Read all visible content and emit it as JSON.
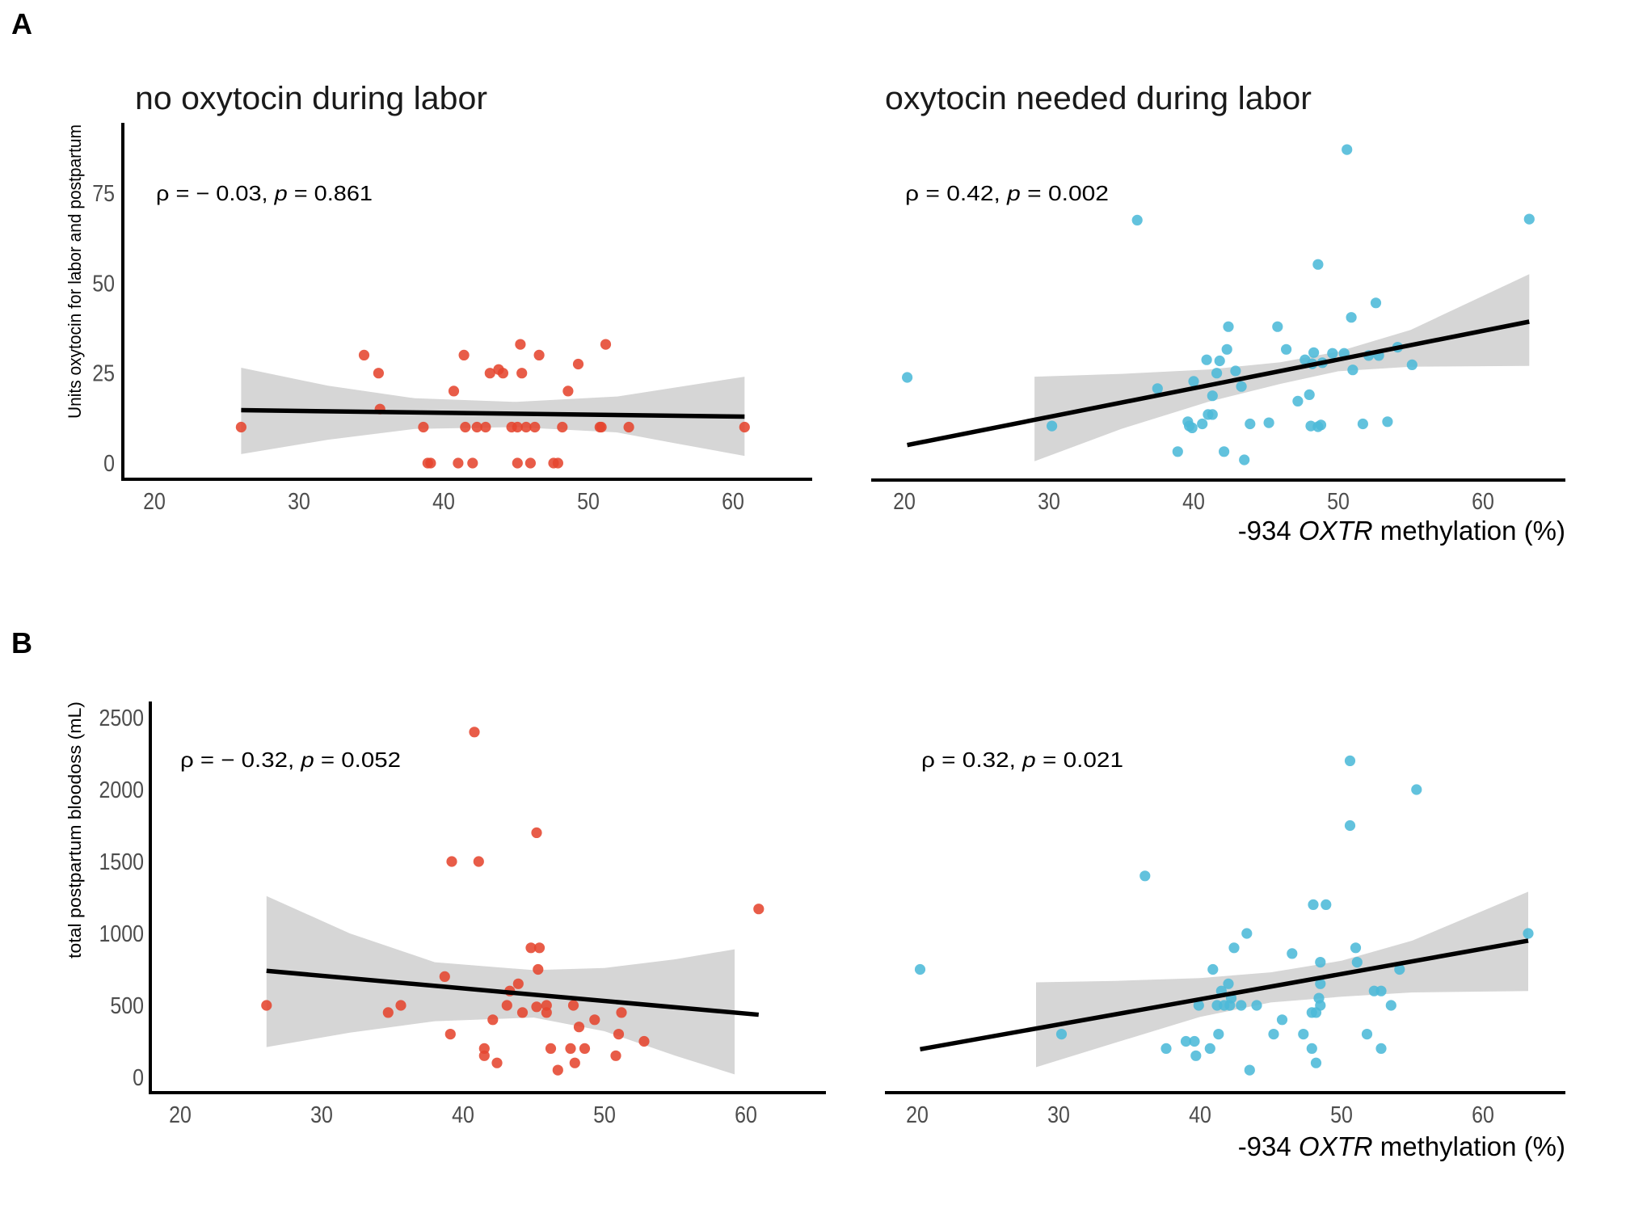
{
  "figure": {
    "panel_labels": [
      "A",
      "B"
    ],
    "column_titles": [
      "no oxytocin during labor",
      "oxytocin needed during labor"
    ],
    "x_axis_label": {
      "prefix": "-934 ",
      "gene": "OXTR",
      "suffix": " methylation (%)"
    }
  },
  "colors": {
    "no_oxytocin": "#e5452f",
    "oxytocin_needed": "#4cb9d8",
    "ci_band": "#d6d6d6",
    "fit_line": "#000000",
    "axis": "#000000",
    "tick_text": "#4d4d4d"
  },
  "chart_data": [
    {
      "id": "A-left",
      "type": "scatter",
      "panel": "A",
      "title": "no oxytocin during labor",
      "ylabel": "Units oxytocin for labor and postpartum",
      "xlabel": "",
      "xlim": [
        17.8,
        65.6
      ],
      "ylim": [
        -4.5,
        94
      ],
      "xticks": [
        20,
        30,
        40,
        50,
        60
      ],
      "xtick_labels": [
        "20",
        "30",
        "40",
        "50",
        "60"
      ],
      "yticks": [
        0,
        25,
        50,
        75
      ],
      "ytick_labels": [
        "0",
        "25",
        "50",
        "75"
      ],
      "annotation": {
        "rho_sym": "ρ",
        "eq1": " = − 0.03, ",
        "p_sym": "p",
        "eq2": " = 0.861"
      },
      "series": [
        {
          "name": "no oxytocin during labor",
          "color": "#e5452f",
          "x": [
            26.0,
            34.5,
            35.5,
            35.6,
            38.6,
            38.9,
            39.1,
            40.7,
            41.0,
            41.4,
            41.5,
            42.0,
            42.3,
            42.9,
            43.2,
            43.8,
            44.1,
            44.7,
            45.1,
            45.1,
            45.3,
            45.4,
            45.7,
            46.0,
            46.3,
            46.6,
            47.6,
            47.9,
            48.2,
            48.6,
            49.3,
            50.8,
            50.9,
            51.2,
            52.8,
            60.8
          ],
          "y": [
            10,
            30,
            25,
            15,
            10,
            0,
            0,
            20,
            0,
            30,
            10,
            0,
            10,
            10,
            25,
            26,
            25,
            10,
            10,
            0,
            33,
            25,
            10,
            0,
            10,
            30,
            0,
            0,
            10,
            20,
            27.5,
            10,
            10,
            33,
            10,
            10
          ]
        }
      ],
      "fit": {
        "x": [
          26.0,
          60.8
        ],
        "y": [
          14.7,
          12.9
        ]
      },
      "ci": {
        "x": [
          26,
          32,
          38,
          45,
          52,
          56,
          60.8
        ],
        "upper": [
          26.5,
          21.5,
          18.0,
          17.0,
          18.5,
          21.0,
          24.0
        ],
        "lower": [
          2.5,
          6.5,
          9.5,
          10.0,
          8.5,
          5.5,
          2.0
        ]
      }
    },
    {
      "id": "A-right",
      "type": "scatter",
      "panel": "A",
      "title": "oxytocin needed during labor",
      "ylabel": "",
      "xlabel": "-934 OXTR methylation (%)",
      "xlim": [
        17.8,
        65.6
      ],
      "ylim": [
        -4.5,
        94
      ],
      "xticks": [
        20,
        30,
        40,
        50,
        60
      ],
      "xtick_labels": [
        "20",
        "30",
        "40",
        "50",
        "60"
      ],
      "annotation": {
        "rho_sym": "ρ",
        "eq1": " = 0.42, ",
        "p_sym": "p",
        "eq2": " = 0.002"
      },
      "series": [
        {
          "name": "oxytocin needed during labor",
          "color": "#4cb9d8",
          "x": [
            20.2,
            30.2,
            36.1,
            37.5,
            38.9,
            39.6,
            39.7,
            39.9,
            40.0,
            40.6,
            40.9,
            41.0,
            41.3,
            41.3,
            41.6,
            41.8,
            42.1,
            42.3,
            42.4,
            42.9,
            43.3,
            43.5,
            43.9,
            45.2,
            45.8,
            46.4,
            47.2,
            47.7,
            48.0,
            48.1,
            48.2,
            48.3,
            48.6,
            48.6,
            48.8,
            48.9,
            49.6,
            50.4,
            50.6,
            50.9,
            51.0,
            51.7,
            52.1,
            52.6,
            52.8,
            53.4,
            54.1,
            55.1,
            63.2
          ],
          "y": [
            23.8,
            10.3,
            67.5,
            20.7,
            3.2,
            11.5,
            10.3,
            9.8,
            22.7,
            10.9,
            28.7,
            13.5,
            13.5,
            18.7,
            25.0,
            28.4,
            3.2,
            31.6,
            37.9,
            25.6,
            21.3,
            0.9,
            10.9,
            11.2,
            37.9,
            31.6,
            17.2,
            28.7,
            19.0,
            10.3,
            27.6,
            30.7,
            10.1,
            55.2,
            10.6,
            27.9,
            30.5,
            30.5,
            87.1,
            40.5,
            25.9,
            10.9,
            29.9,
            44.5,
            29.9,
            11.5,
            32.2,
            27.3,
            67.8
          ]
        }
      ],
      "fit": {
        "x": [
          20.2,
          63.2
        ],
        "y": [
          5.0,
          39.3
        ]
      },
      "ci": {
        "x": [
          29,
          35,
          41,
          46,
          50,
          55,
          63.2
        ],
        "upper": [
          24.0,
          24.8,
          26.0,
          28.0,
          31.0,
          37.0,
          52.5
        ],
        "lower": [
          0.5,
          9.5,
          17.0,
          22.0,
          25.5,
          26.8,
          27.0
        ]
      }
    },
    {
      "id": "B-left",
      "type": "scatter",
      "panel": "B",
      "title": "",
      "ylabel": "total postpartum bloodoss (mL)",
      "xlabel": "",
      "xlim": [
        17.8,
        65.6
      ],
      "ylim": [
        -110,
        2620
      ],
      "xticks": [
        20,
        30,
        40,
        50,
        60
      ],
      "xtick_labels": [
        "20",
        "30",
        "40",
        "50",
        "60"
      ],
      "yticks": [
        0,
        500,
        1000,
        1500,
        2000,
        2500
      ],
      "ytick_labels": [
        "0",
        "500",
        "1000",
        "1500",
        "2000",
        "2500"
      ],
      "annotation": {
        "rho_sym": "ρ",
        "eq1": " = − 0.32, ",
        "p_sym": "p",
        "eq2": " = 0.052"
      },
      "series": [
        {
          "name": "no oxytocin during labor",
          "color": "#e5452f",
          "x": [
            26.1,
            34.7,
            35.6,
            38.7,
            39.1,
            39.2,
            40.8,
            41.1,
            41.5,
            41.5,
            42.1,
            42.4,
            43.1,
            43.3,
            43.9,
            44.2,
            44.8,
            45.2,
            45.2,
            45.3,
            45.4,
            45.9,
            45.9,
            46.2,
            46.7,
            47.6,
            47.8,
            47.9,
            48.2,
            48.6,
            49.3,
            50.8,
            51.0,
            51.2,
            52.8,
            60.9
          ],
          "y": [
            500,
            450,
            500,
            700,
            300,
            1500,
            2400,
            1500,
            200,
            150,
            400,
            100,
            500,
            600,
            650,
            450,
            900,
            490,
            1700,
            750,
            900,
            450,
            500,
            200,
            50,
            200,
            500,
            100,
            350,
            200,
            400,
            150,
            300,
            450,
            250,
            1170
          ]
        }
      ],
      "fit": {
        "x": [
          26.1,
          60.9
        ],
        "y": [
          740,
          435
        ]
      },
      "ci": {
        "x": [
          26.1,
          32,
          38,
          45,
          50,
          55,
          59.2
        ],
        "upper": [
          1260,
          1000,
          800,
          745,
          760,
          820,
          890
        ],
        "lower": [
          210,
          310,
          390,
          415,
          320,
          150,
          20
        ]
      }
    },
    {
      "id": "B-right",
      "type": "scatter",
      "panel": "B",
      "title": "",
      "ylabel": "",
      "xlabel": "-934 OXTR methylation (%)",
      "xlim": [
        17.8,
        65.6
      ],
      "ylim": [
        -110,
        2620
      ],
      "xticks": [
        20,
        30,
        40,
        50,
        60
      ],
      "xtick_labels": [
        "20",
        "30",
        "40",
        "50",
        "60"
      ],
      "annotation": {
        "rho_sym": "ρ",
        "eq1": " = 0.32, ",
        "p_sym": "p",
        "eq2": " = 0.021"
      },
      "series": [
        {
          "name": "oxytocin needed during labor",
          "color": "#4cb9d8",
          "x": [
            20.2,
            30.2,
            36.1,
            37.6,
            39.0,
            39.6,
            39.7,
            39.9,
            40.7,
            40.9,
            41.2,
            41.3,
            41.5,
            41.7,
            42.0,
            42.1,
            42.2,
            42.4,
            42.9,
            43.3,
            43.5,
            44.0,
            45.2,
            45.8,
            46.5,
            47.3,
            47.9,
            47.9,
            48.0,
            48.2,
            48.2,
            48.4,
            48.5,
            48.5,
            48.5,
            48.9,
            50.6,
            50.6,
            51.0,
            51.1,
            51.8,
            52.3,
            52.8,
            52.8,
            53.5,
            54.1,
            55.3,
            63.2
          ],
          "y": [
            750,
            300,
            1400,
            200,
            250,
            250,
            150,
            500,
            200,
            750,
            500,
            300,
            600,
            500,
            650,
            500,
            550,
            900,
            500,
            1000,
            50,
            500,
            300,
            400,
            860,
            300,
            450,
            200,
            1200,
            450,
            100,
            550,
            800,
            500,
            650,
            1200,
            2200,
            1750,
            900,
            800,
            300,
            600,
            600,
            200,
            500,
            750,
            2000,
            1000
          ]
        }
      ],
      "fit": {
        "x": [
          20.2,
          63.2
        ],
        "y": [
          195,
          950
        ]
      },
      "ci": {
        "x": [
          28.4,
          34,
          40,
          45,
          50,
          55,
          63.2
        ],
        "upper": [
          660,
          670,
          690,
          730,
          810,
          950,
          1290
        ],
        "lower": [
          70,
          240,
          420,
          520,
          560,
          590,
          600
        ]
      }
    }
  ]
}
